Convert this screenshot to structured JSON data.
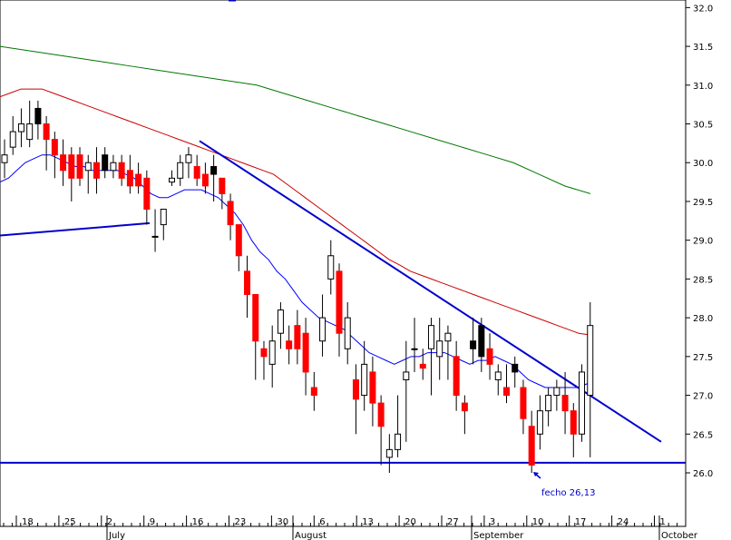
{
  "chart_data": {
    "type": "candlestick",
    "ylim": [
      25.6,
      32.1
    ],
    "y_ticks": [
      "26.0",
      "26.5",
      "27.0",
      "27.5",
      "28.0",
      "28.5",
      "29.0",
      "29.5",
      "30.0",
      "30.5",
      "31.0",
      "31.5",
      "32.0"
    ],
    "x_ticks": [
      "18",
      "25",
      "2",
      "9",
      "16",
      "23",
      "30",
      "6",
      "13",
      "20",
      "27",
      "3",
      "10",
      "17",
      "24",
      "1"
    ],
    "month_labels": [
      "July",
      "August",
      "September",
      "October"
    ],
    "grid": false,
    "colors": {
      "up": "#ffffff",
      "down": "#ff0000",
      "down_alt": "#000000",
      "wick": "#000000",
      "ma_short": "#0000ff",
      "ma_mid": "#cc0000",
      "ma_long": "#007700",
      "trendline": "#0000cc"
    },
    "candles": [
      [
        30.0,
        30.3,
        30.1,
        29.8,
        "up"
      ],
      [
        30.2,
        30.6,
        30.4,
        30.1,
        "up"
      ],
      [
        30.4,
        30.7,
        30.5,
        30.2,
        "up"
      ],
      [
        30.3,
        30.8,
        30.5,
        30.2,
        "up"
      ],
      [
        30.5,
        30.8,
        30.7,
        30.3,
        "down_alt"
      ],
      [
        30.5,
        30.6,
        30.3,
        29.9,
        "down"
      ],
      [
        30.3,
        30.4,
        30.1,
        29.8,
        "down"
      ],
      [
        30.1,
        30.3,
        29.9,
        29.7,
        "down"
      ],
      [
        30.1,
        30.2,
        29.8,
        29.5,
        "down"
      ],
      [
        30.1,
        30.2,
        29.8,
        29.7,
        "down"
      ],
      [
        29.9,
        30.1,
        30.0,
        29.6,
        "up"
      ],
      [
        30.0,
        30.2,
        29.8,
        29.6,
        "down"
      ],
      [
        30.1,
        30.2,
        29.9,
        29.8,
        "down_alt"
      ],
      [
        29.9,
        30.1,
        30.0,
        29.8,
        "up"
      ],
      [
        30.0,
        30.1,
        29.8,
        29.7,
        "down"
      ],
      [
        29.9,
        30.1,
        29.7,
        29.6,
        "down"
      ],
      [
        29.85,
        30.0,
        29.7,
        29.6,
        "down"
      ],
      [
        29.8,
        29.9,
        29.4,
        29.2,
        "down"
      ],
      [
        29.05,
        29.4,
        29.05,
        28.85,
        "up"
      ],
      [
        29.2,
        29.4,
        29.4,
        29.0,
        "up"
      ],
      [
        29.75,
        29.9,
        29.8,
        29.7,
        "up"
      ],
      [
        29.8,
        30.1,
        30.0,
        29.7,
        "up"
      ],
      [
        30.0,
        30.2,
        30.1,
        29.8,
        "up"
      ],
      [
        29.95,
        30.1,
        29.8,
        29.7,
        "down"
      ],
      [
        29.85,
        30.0,
        29.7,
        29.6,
        "down"
      ],
      [
        29.95,
        30.1,
        29.85,
        29.5,
        "down_alt"
      ],
      [
        29.8,
        29.8,
        29.6,
        29.4,
        "down"
      ],
      [
        29.5,
        29.6,
        29.2,
        29.0,
        "down"
      ],
      [
        29.2,
        29.2,
        28.8,
        28.6,
        "down"
      ],
      [
        28.6,
        28.8,
        28.3,
        28.0,
        "down"
      ],
      [
        28.3,
        28.3,
        27.7,
        27.2,
        "down"
      ],
      [
        27.6,
        27.7,
        27.5,
        27.2,
        "down"
      ],
      [
        27.4,
        27.9,
        27.7,
        27.1,
        "up"
      ],
      [
        27.8,
        28.2,
        28.1,
        27.6,
        "up"
      ],
      [
        27.7,
        27.9,
        27.6,
        27.4,
        "down"
      ],
      [
        27.9,
        28.1,
        27.6,
        27.4,
        "down"
      ],
      [
        27.8,
        28.0,
        27.3,
        27.0,
        "down"
      ],
      [
        27.1,
        27.3,
        27.0,
        26.8,
        "down"
      ],
      [
        28.0,
        28.3,
        27.7,
        27.5,
        "up"
      ],
      [
        28.8,
        29.0,
        28.5,
        28.3,
        "up"
      ],
      [
        28.6,
        28.7,
        27.8,
        27.5,
        "down"
      ],
      [
        28.0,
        28.2,
        27.6,
        27.4,
        "up"
      ],
      [
        27.2,
        27.4,
        26.95,
        26.5,
        "down"
      ],
      [
        27.0,
        27.7,
        27.4,
        26.8,
        "up"
      ],
      [
        27.3,
        27.5,
        26.9,
        26.6,
        "down"
      ],
      [
        26.9,
        27.0,
        26.6,
        26.1,
        "down"
      ],
      [
        26.3,
        26.5,
        26.2,
        26.0,
        "up"
      ],
      [
        26.5,
        27.0,
        26.3,
        26.2,
        "up"
      ],
      [
        27.2,
        27.7,
        27.3,
        26.4,
        "up"
      ],
      [
        27.6,
        28.0,
        27.6,
        27.3,
        "down_alt"
      ],
      [
        27.4,
        27.6,
        27.35,
        27.2,
        "down"
      ],
      [
        27.9,
        28.0,
        27.6,
        27.0,
        "up"
      ],
      [
        27.7,
        28.0,
        27.5,
        27.2,
        "up"
      ],
      [
        27.8,
        27.9,
        27.7,
        27.2,
        "up"
      ],
      [
        27.5,
        27.7,
        27.0,
        26.8,
        "down"
      ],
      [
        26.9,
        27.0,
        26.8,
        26.5,
        "down"
      ],
      [
        27.6,
        28.0,
        27.7,
        27.4,
        "down_alt"
      ],
      [
        27.9,
        28.0,
        27.5,
        27.3,
        "down_alt"
      ],
      [
        27.6,
        27.8,
        27.4,
        27.2,
        "down"
      ],
      [
        27.3,
        27.4,
        27.2,
        27.0,
        "up"
      ],
      [
        27.1,
        27.4,
        27.0,
        26.9,
        "down"
      ],
      [
        27.4,
        27.5,
        27.3,
        27.1,
        "down_alt"
      ],
      [
        27.1,
        27.2,
        26.7,
        26.5,
        "down"
      ],
      [
        26.6,
        26.8,
        26.1,
        26.0,
        "down"
      ],
      [
        26.5,
        27.0,
        26.8,
        26.3,
        "up"
      ],
      [
        26.8,
        27.1,
        27.0,
        26.6,
        "up"
      ],
      [
        27.0,
        27.2,
        27.1,
        26.8,
        "up"
      ],
      [
        27.0,
        27.3,
        26.8,
        26.5,
        "down"
      ],
      [
        26.8,
        26.9,
        26.5,
        26.2,
        "down"
      ],
      [
        26.5,
        27.4,
        27.3,
        26.4,
        "up"
      ],
      [
        27.0,
        28.2,
        27.9,
        26.2,
        "up"
      ]
    ],
    "ma_short": [
      29.75,
      29.8,
      29.9,
      30.0,
      30.05,
      30.1,
      30.1,
      30.05,
      30.0,
      29.95,
      29.95,
      29.9,
      29.9,
      29.9,
      29.9,
      29.85,
      29.8,
      29.7,
      29.6,
      29.55,
      29.55,
      29.6,
      29.65,
      29.65,
      29.65,
      29.6,
      29.55,
      29.45,
      29.35,
      29.2,
      29.0,
      28.85,
      28.75,
      28.6,
      28.5,
      28.35,
      28.2,
      28.1,
      28.0,
      27.95,
      27.9,
      27.85,
      27.75,
      27.65,
      27.55,
      27.5,
      27.45,
      27.4,
      27.45,
      27.5,
      27.5,
      27.55,
      27.55,
      27.55,
      27.5,
      27.45,
      27.4,
      27.45,
      27.45,
      27.5,
      27.45,
      27.4,
      27.3,
      27.2,
      27.15,
      27.1,
      27.1,
      27.1,
      27.1,
      27.1,
      27.15
    ],
    "ma_mid": [
      30.85,
      30.9,
      30.95,
      30.95,
      30.95,
      30.9,
      30.85,
      30.8,
      30.75,
      30.7,
      30.65,
      30.6,
      30.55,
      30.5,
      30.45,
      30.4,
      30.35,
      30.3,
      30.25,
      30.2,
      30.15,
      30.1,
      30.05,
      30.0,
      29.95,
      29.9,
      29.85,
      29.75,
      29.65,
      29.55,
      29.45,
      29.35,
      29.25,
      29.15,
      29.05,
      28.95,
      28.85,
      28.75,
      28.68,
      28.6,
      28.55,
      28.5,
      28.45,
      28.4,
      28.35,
      28.3,
      28.25,
      28.2,
      28.15,
      28.1,
      28.05,
      28.0,
      27.95,
      27.9,
      27.85,
      27.8,
      27.78
    ],
    "ma_long": [
      31.5,
      31.45,
      31.4,
      31.35,
      31.3,
      31.25,
      31.2,
      31.15,
      31.1,
      31.05,
      31.0,
      30.9,
      30.8,
      30.7,
      30.6,
      30.5,
      30.4,
      30.3,
      30.2,
      30.1,
      30.0,
      29.85,
      29.7,
      29.6
    ],
    "annotation": "fecho 26,13"
  }
}
